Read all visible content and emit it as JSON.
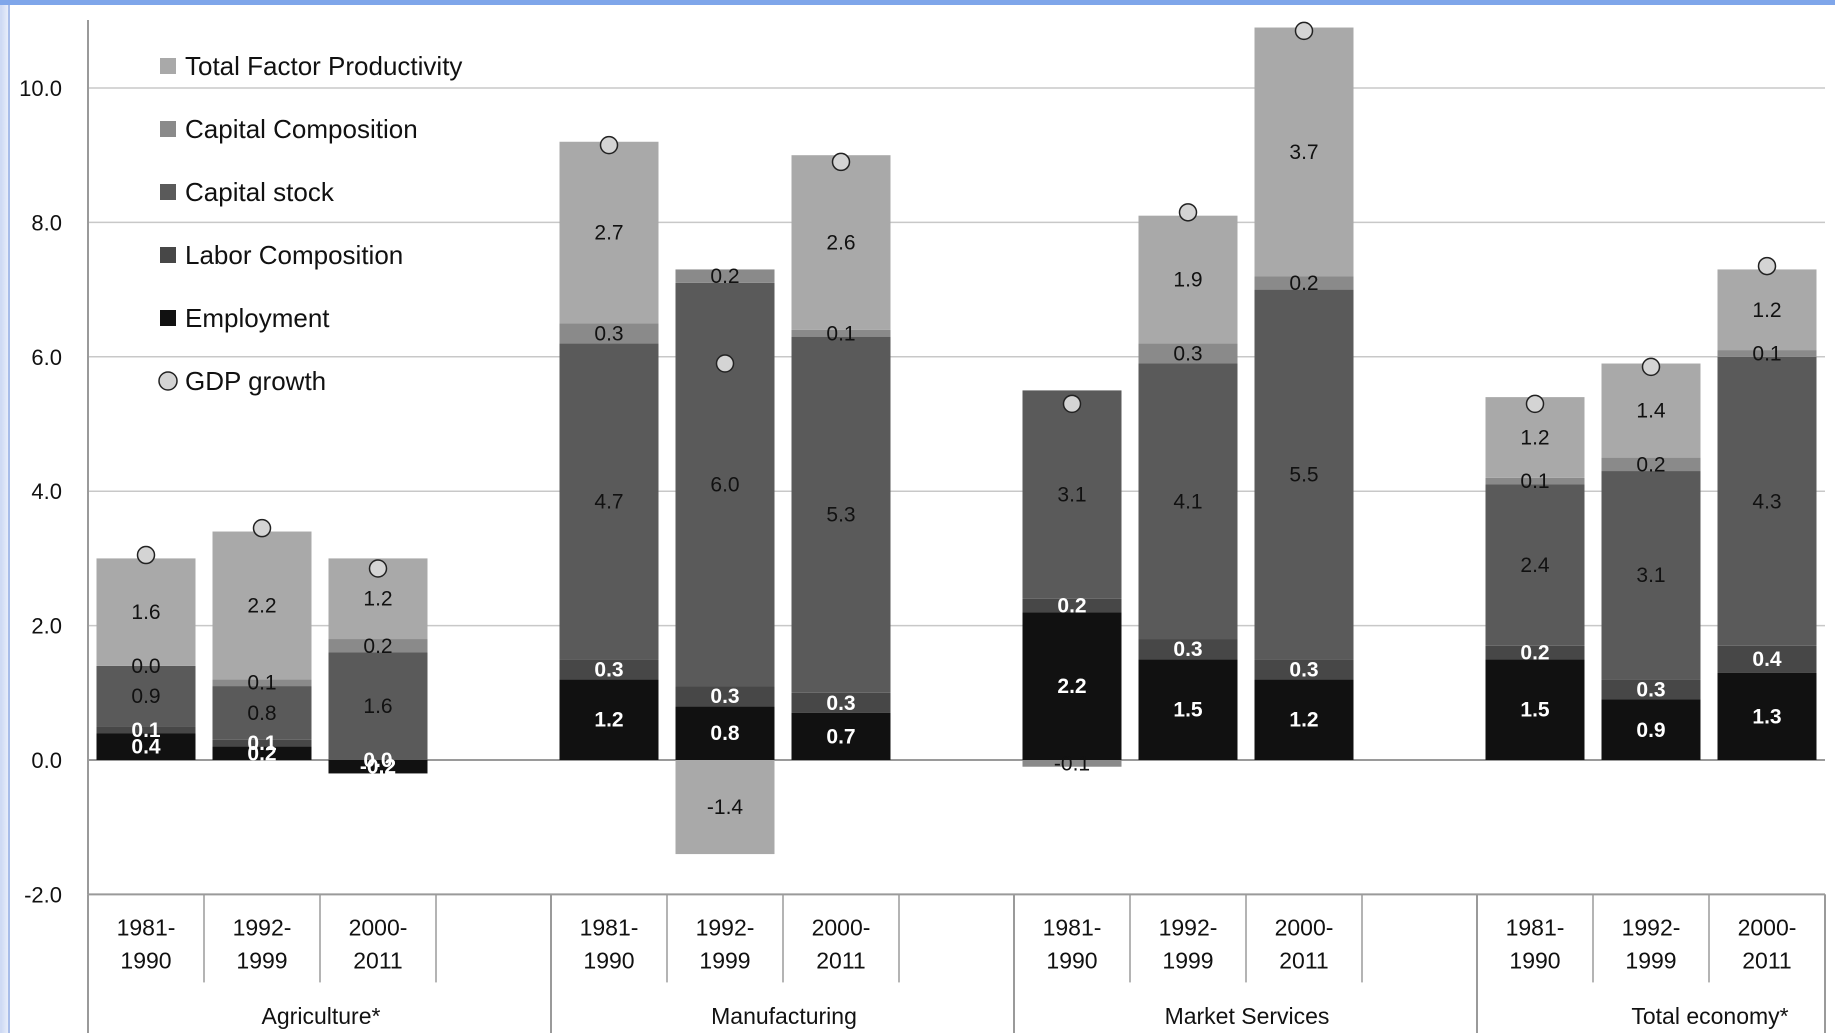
{
  "chart_data": {
    "type": "bar",
    "stacked": true,
    "ylim": [
      -2.0,
      11.0
    ],
    "yticks": [
      "10.0",
      "8.0",
      "6.0",
      "4.0",
      "2.0",
      "0.0",
      "-2.0"
    ],
    "grid": true,
    "legend_position": "top-left",
    "groups": [
      {
        "name": "Agriculture*",
        "periods": [
          "1981-1990",
          "1992-1999",
          "2000-2011"
        ]
      },
      {
        "name": "Manufacturing",
        "periods": [
          "1981-1990",
          "1992-1999",
          "2000-2011"
        ]
      },
      {
        "name": "Market Services",
        "periods": [
          "1981-1990",
          "1992-1999",
          "2000-2011"
        ]
      },
      {
        "name": "Total economy*",
        "periods": [
          "1981-1990",
          "1992-1999",
          "2000-2011"
        ]
      }
    ],
    "legend": [
      "Total Factor Productivity",
      "Capital Composition",
      "Capital stock",
      "Labor Composition",
      "Employment",
      "GDP growth"
    ],
    "series": [
      {
        "name": "Employment",
        "color": "#111111",
        "values": [
          0.4,
          0.2,
          -0.2,
          1.2,
          0.8,
          0.7,
          2.2,
          1.5,
          1.2,
          1.5,
          0.9,
          1.3
        ],
        "labels": [
          "0.4",
          "0.2",
          "-0.2",
          "1.2",
          "0.8",
          "0.7",
          "2.2",
          "1.5",
          "1.2",
          "1.5",
          "0.9",
          "1.3"
        ]
      },
      {
        "name": "Labor Composition",
        "color": "#474747",
        "values": [
          0.1,
          0.1,
          0.0,
          0.3,
          0.3,
          0.3,
          0.2,
          0.3,
          0.3,
          0.2,
          0.3,
          0.4
        ],
        "labels": [
          "0.1",
          "0.1",
          "0.0",
          "0.3",
          "0.3",
          "0.3",
          "0.2",
          "0.3",
          "0.3",
          "0.2",
          "0.3",
          "0.4"
        ]
      },
      {
        "name": "Capital stock",
        "color": "#5a5a5a",
        "values": [
          0.9,
          0.8,
          1.6,
          4.7,
          6.0,
          5.3,
          3.1,
          4.1,
          5.5,
          2.4,
          3.1,
          4.3
        ],
        "labels": [
          "0.9",
          "0.8",
          "1.6",
          "4.7",
          "6.0",
          "5.3",
          "3.1",
          "4.1",
          "5.5",
          "2.4",
          "3.1",
          "4.3"
        ]
      },
      {
        "name": "Capital Composition",
        "color": "#8a8a8a",
        "values": [
          0.0,
          0.1,
          0.2,
          0.3,
          0.2,
          0.1,
          -0.1,
          0.3,
          0.2,
          0.1,
          0.2,
          0.1
        ],
        "labels": [
          "0.0",
          "0.1",
          "0.2",
          "0.3",
          "0.2",
          "0.1",
          "-0.1",
          "0.3",
          "0.2",
          "0.1",
          "0.2",
          "0.1"
        ]
      },
      {
        "name": "Total Factor Productivity",
        "color": "#a9a9a9",
        "values": [
          1.6,
          2.2,
          1.2,
          2.7,
          -1.4,
          2.6,
          0.0,
          1.9,
          3.7,
          1.2,
          1.4,
          1.2
        ],
        "labels": [
          "1.6",
          "2.2",
          "1.2",
          "2.7",
          "-1.4",
          "2.6",
          "",
          "1.9",
          "3.7",
          "1.2",
          "1.4",
          "1.2"
        ]
      }
    ],
    "gdp_growth": [
      3.05,
      3.45,
      2.85,
      9.15,
      5.9,
      8.9,
      5.3,
      8.15,
      10.85,
      5.3,
      5.85,
      7.35
    ]
  }
}
